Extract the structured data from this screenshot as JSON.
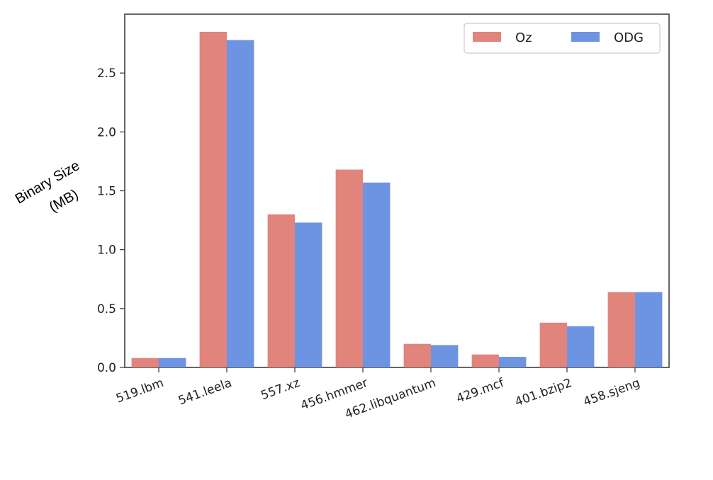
{
  "chart_data": {
    "type": "bar",
    "categories": [
      "519.lbm",
      "541.leela",
      "557.xz",
      "456.hmmer",
      "462.libquantum",
      "429.mcf",
      "401.bzip2",
      "458.sjeng"
    ],
    "series": [
      {
        "name": "Oz",
        "color": "#e0847c",
        "values": [
          0.08,
          2.85,
          1.3,
          1.68,
          0.2,
          0.11,
          0.38,
          0.64
        ]
      },
      {
        "name": "ODG",
        "color": "#6d93e3",
        "values": [
          0.08,
          2.78,
          1.23,
          1.57,
          0.19,
          0.09,
          0.35,
          0.64
        ]
      }
    ],
    "ylabel_lines": [
      "Binary Size",
      "(MB)"
    ],
    "xlabel": "",
    "title": "",
    "ylim": [
      0,
      3.0
    ],
    "yticks": [
      "0.0",
      "0.5",
      "1.0",
      "1.5",
      "2.0",
      "2.5"
    ],
    "grid": false,
    "legend": "top-right"
  }
}
